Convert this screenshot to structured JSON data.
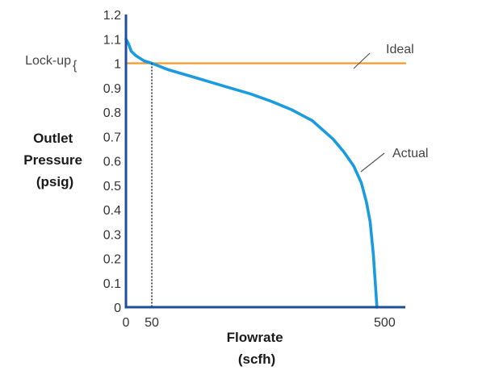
{
  "chart_data": {
    "type": "line",
    "xlabel_lines": [
      "Flowrate",
      "(scfh)"
    ],
    "ylabel_lines": [
      "Outlet",
      "Pressure",
      "(psig)"
    ],
    "x_ticks": [
      "0",
      "50",
      "500"
    ],
    "y_ticks": [
      "0",
      "0.1",
      "0.2",
      "0.3",
      "0.4",
      "0.5",
      "0.6",
      "0.7",
      "0.8",
      "0.9",
      "1",
      "1.1",
      "1.2"
    ],
    "xlim": [
      0,
      540
    ],
    "ylim": [
      0,
      1.2
    ],
    "series": [
      {
        "name": "Ideal",
        "color": "#f39a2b",
        "x": [
          0,
          540
        ],
        "y": [
          1.0,
          1.0
        ]
      },
      {
        "name": "Actual",
        "color": "#1a9be0",
        "x": [
          0,
          5,
          10,
          20,
          35,
          50,
          80,
          120,
          160,
          200,
          240,
          280,
          320,
          360,
          400,
          420,
          440,
          455,
          465,
          472,
          478,
          482,
          485
        ],
        "y": [
          1.1,
          1.08,
          1.05,
          1.03,
          1.01,
          1.0,
          0.975,
          0.95,
          0.925,
          0.9,
          0.875,
          0.845,
          0.81,
          0.765,
          0.69,
          0.64,
          0.58,
          0.51,
          0.43,
          0.35,
          0.22,
          0.1,
          0.0
        ]
      }
    ],
    "annotations": {
      "lockup_label": "Lock-up",
      "lockup_range": [
        1.0,
        1.1
      ],
      "ideal_label": "Ideal",
      "actual_label": "Actual",
      "reference_x": 50
    },
    "grid": false
  }
}
